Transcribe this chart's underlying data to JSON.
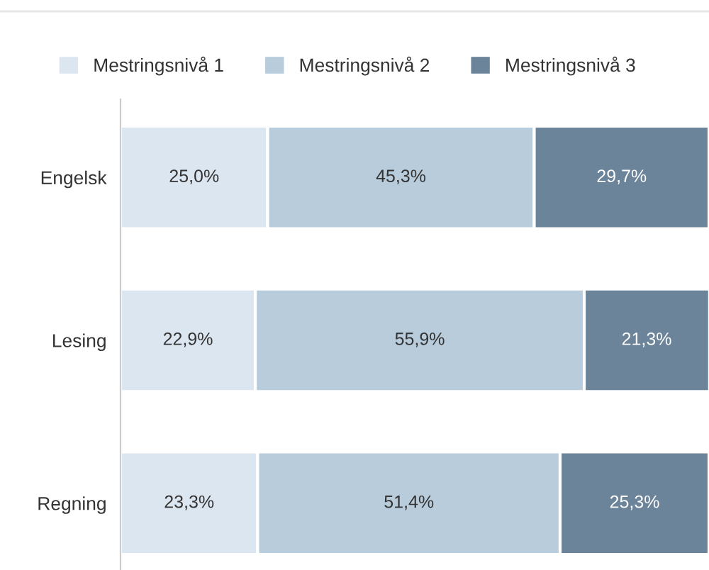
{
  "chart_data": {
    "type": "bar",
    "orientation": "horizontal",
    "stacked": true,
    "categories": [
      "Engelsk",
      "Lesing",
      "Regning"
    ],
    "series": [
      {
        "name": "Mestringsnivå 1",
        "color": "#dce6f0",
        "values": [
          25.0,
          22.9,
          23.3
        ],
        "value_labels": [
          "25,0%",
          "22,9%",
          "23,3%"
        ]
      },
      {
        "name": "Mestringsnivå 2",
        "color": "#b8ccdc",
        "values": [
          45.3,
          55.9,
          51.4
        ],
        "value_labels": [
          "45,3%",
          "55,9%",
          "51,4%"
        ]
      },
      {
        "name": "Mestringsnivå 3",
        "color": "#6b8499",
        "values": [
          29.7,
          21.3,
          25.3
        ],
        "value_labels": [
          "29,7%",
          "21,3%",
          "25,3%"
        ]
      }
    ],
    "xlim": [
      0,
      100
    ],
    "tick_labels": "y",
    "legend": "top left",
    "grid": false
  }
}
